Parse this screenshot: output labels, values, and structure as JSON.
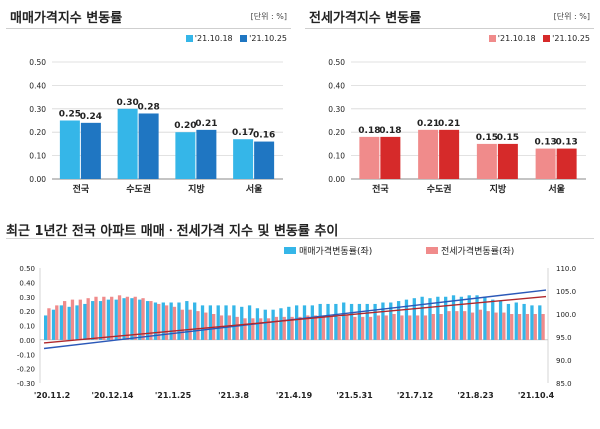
{
  "colors": {
    "sale_prev": "#35b6e8",
    "sale_curr": "#1f76c2",
    "jeonse_prev": "#f08b8b",
    "jeonse_curr": "#d62a2a",
    "trend_sale": "#2b58b8",
    "trend_jeonse": "#b0282c"
  },
  "chart_data": [
    {
      "type": "bar",
      "title": "매매가격지수 변동률",
      "unit_label": "[단위 : %]",
      "categories": [
        "전국",
        "수도권",
        "지방",
        "서울"
      ],
      "series": [
        {
          "name": "'21.10.18",
          "values": [
            0.25,
            0.3,
            0.2,
            0.17
          ]
        },
        {
          "name": "'21.10.25",
          "values": [
            0.24,
            0.28,
            0.21,
            0.16
          ]
        }
      ],
      "ylim": [
        0,
        0.5
      ],
      "yticks": [
        "0.00",
        "0.10",
        "0.20",
        "0.30",
        "0.40",
        "0.50"
      ],
      "grid": true,
      "legend": "top-right"
    },
    {
      "type": "bar",
      "title": "전세가격지수 변동률",
      "unit_label": "[단위 : %]",
      "categories": [
        "전국",
        "수도권",
        "지방",
        "서울"
      ],
      "series": [
        {
          "name": "'21.10.18",
          "values": [
            0.18,
            0.21,
            0.15,
            0.13
          ]
        },
        {
          "name": "'21.10.25",
          "values": [
            0.18,
            0.21,
            0.15,
            0.13
          ]
        }
      ],
      "ylim": [
        0,
        0.5
      ],
      "yticks": [
        "0.00",
        "0.10",
        "0.20",
        "0.30",
        "0.40",
        "0.50"
      ],
      "grid": true,
      "legend": "top-right"
    },
    {
      "type": "bar",
      "title": "최근 1년간 전국 아파트 매매ㆍ전세가격 지수 및 변동률 추이",
      "legend": "top-right",
      "x_ticks": [
        "'20.11.2",
        "'20.12.14",
        "'21.1.25",
        "'21.3.8",
        "'21.4.19",
        "'21.5.31",
        "'21.7.12",
        "'21.8.23",
        "'21.10.4"
      ],
      "y_left": {
        "ylim": [
          -0.3,
          0.5
        ],
        "ticks": [
          "0.50",
          "0.40",
          "0.30",
          "0.20",
          "0.10",
          "0.00",
          "-0.10",
          "-0.20",
          "-0.30"
        ]
      },
      "y_right": {
        "ylim": [
          85,
          110
        ],
        "ticks": [
          "110.0",
          "105.0",
          "100.0",
          "95.0",
          "90.0",
          "85.0"
        ]
      },
      "series": [
        {
          "name": "매매가격변동률(좌)",
          "axis": "left",
          "values": [
            0.17,
            0.21,
            0.24,
            0.23,
            0.24,
            0.25,
            0.27,
            0.27,
            0.28,
            0.28,
            0.29,
            0.29,
            0.28,
            0.27,
            0.26,
            0.26,
            0.26,
            0.26,
            0.27,
            0.26,
            0.24,
            0.24,
            0.24,
            0.24,
            0.24,
            0.23,
            0.24,
            0.22,
            0.21,
            0.21,
            0.22,
            0.23,
            0.24,
            0.24,
            0.24,
            0.25,
            0.25,
            0.25,
            0.26,
            0.25,
            0.25,
            0.25,
            0.25,
            0.26,
            0.26,
            0.27,
            0.28,
            0.29,
            0.3,
            0.29,
            0.3,
            0.3,
            0.31,
            0.3,
            0.31,
            0.31,
            0.3,
            0.28,
            0.27,
            0.25,
            0.26,
            0.25,
            0.24,
            0.24
          ]
        },
        {
          "name": "전세가격변동률(좌)",
          "axis": "left",
          "values": [
            0.22,
            0.24,
            0.27,
            0.28,
            0.28,
            0.29,
            0.3,
            0.3,
            0.3,
            0.31,
            0.3,
            0.3,
            0.29,
            0.27,
            0.25,
            0.24,
            0.23,
            0.21,
            0.21,
            0.2,
            0.19,
            0.18,
            0.17,
            0.17,
            0.16,
            0.15,
            0.15,
            0.15,
            0.15,
            0.16,
            0.16,
            0.16,
            0.16,
            0.17,
            0.17,
            0.17,
            0.16,
            0.16,
            0.17,
            0.16,
            0.16,
            0.16,
            0.17,
            0.17,
            0.18,
            0.17,
            0.17,
            0.17,
            0.17,
            0.18,
            0.18,
            0.2,
            0.2,
            0.2,
            0.19,
            0.21,
            0.2,
            0.19,
            0.19,
            0.18,
            0.18,
            0.18,
            0.18,
            0.18
          ]
        },
        {
          "name": "매매가격지수(우)",
          "axis": "right",
          "type": "line",
          "start": 92.5,
          "end": 105.2
        },
        {
          "name": "전세가격지수(우)",
          "axis": "right",
          "type": "line",
          "start": 93.7,
          "end": 103.8
        }
      ]
    }
  ]
}
